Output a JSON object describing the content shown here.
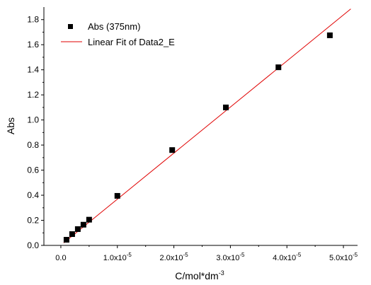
{
  "chart_data": {
    "type": "scatter",
    "xlabel": "C/mol*dm",
    "xlabel_superscript": "-3",
    "ylabel": "Abs",
    "xlim": [
      -3e-06,
      5.25e-05
    ],
    "ylim": [
      0,
      1.9
    ],
    "x_ticks": [
      {
        "value": 0,
        "mantissa": "0.0",
        "exponent": ""
      },
      {
        "value": 1e-05,
        "mantissa": "1.0x10",
        "exponent": "-5"
      },
      {
        "value": 2e-05,
        "mantissa": "2.0x10",
        "exponent": "-5"
      },
      {
        "value": 3e-05,
        "mantissa": "3.0x10",
        "exponent": "-5"
      },
      {
        "value": 4e-05,
        "mantissa": "4.0x10",
        "exponent": "-5"
      },
      {
        "value": 5e-05,
        "mantissa": "5.0x10",
        "exponent": "-5"
      }
    ],
    "y_ticks": [
      0.0,
      0.2,
      0.4,
      0.6,
      0.8,
      1.0,
      1.2,
      1.4,
      1.6,
      1.8
    ],
    "y_tick_labels": [
      "0.0",
      "0.2",
      "0.4",
      "0.6",
      "0.8",
      "1.0",
      "1.2",
      "1.4",
      "1.6",
      "1.8"
    ],
    "series": [
      {
        "name": "Abs (375nm)",
        "marker": "square",
        "color": "#000000",
        "x": [
          1e-06,
          2e-06,
          3e-06,
          4e-06,
          5e-06,
          1e-05,
          1.97e-05,
          2.92e-05,
          3.85e-05,
          4.76e-05
        ],
        "y": [
          0.045,
          0.09,
          0.13,
          0.165,
          0.205,
          0.395,
          0.76,
          1.1,
          1.42,
          1.675
        ]
      },
      {
        "name": "Linear Fit of Data2_E",
        "line": true,
        "color": "#e00000",
        "x": [
          5e-07,
          5.13e-05
        ],
        "y": [
          0.02,
          1.885
        ]
      }
    ],
    "legend_position": "top-left",
    "grid": false
  }
}
